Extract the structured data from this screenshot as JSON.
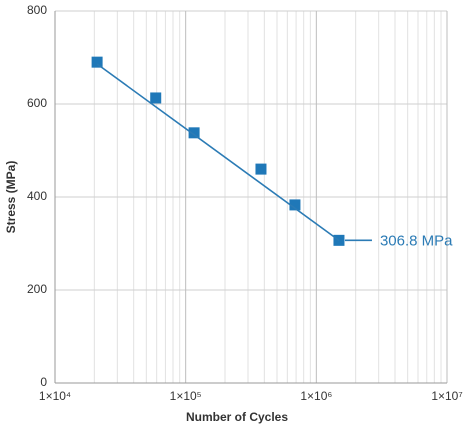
{
  "chart_data": {
    "type": "scatter",
    "xlabel": "Number of Cycles",
    "ylabel": "Stress (MPa)",
    "series": [
      {
        "style": "markers",
        "color": "#1f78b8",
        "x": [
          21000,
          59000,
          116000,
          377000,
          686000,
          1490000
        ],
        "values": [
          690,
          613,
          538,
          460,
          383,
          306.8
        ]
      },
      {
        "style": "line",
        "color": "#2b7bb5",
        "x": [
          21000,
          1490000
        ],
        "values": [
          686,
          306.8
        ]
      }
    ],
    "annotation": {
      "text": "306.8 MPa",
      "color": "#2b7bb5"
    },
    "xscale": "log",
    "xlim": [
      10000,
      10000000
    ],
    "xticks": [
      {
        "value": 10000,
        "label": "1×10⁴"
      },
      {
        "value": 100000,
        "label": "1×10⁵"
      },
      {
        "value": 1000000,
        "label": "1×10⁶"
      },
      {
        "value": 10000000,
        "label": "1×10⁷"
      }
    ],
    "ylim": [
      0,
      800
    ],
    "yticks": [
      0,
      200,
      400,
      600,
      800
    ],
    "grid": true
  }
}
